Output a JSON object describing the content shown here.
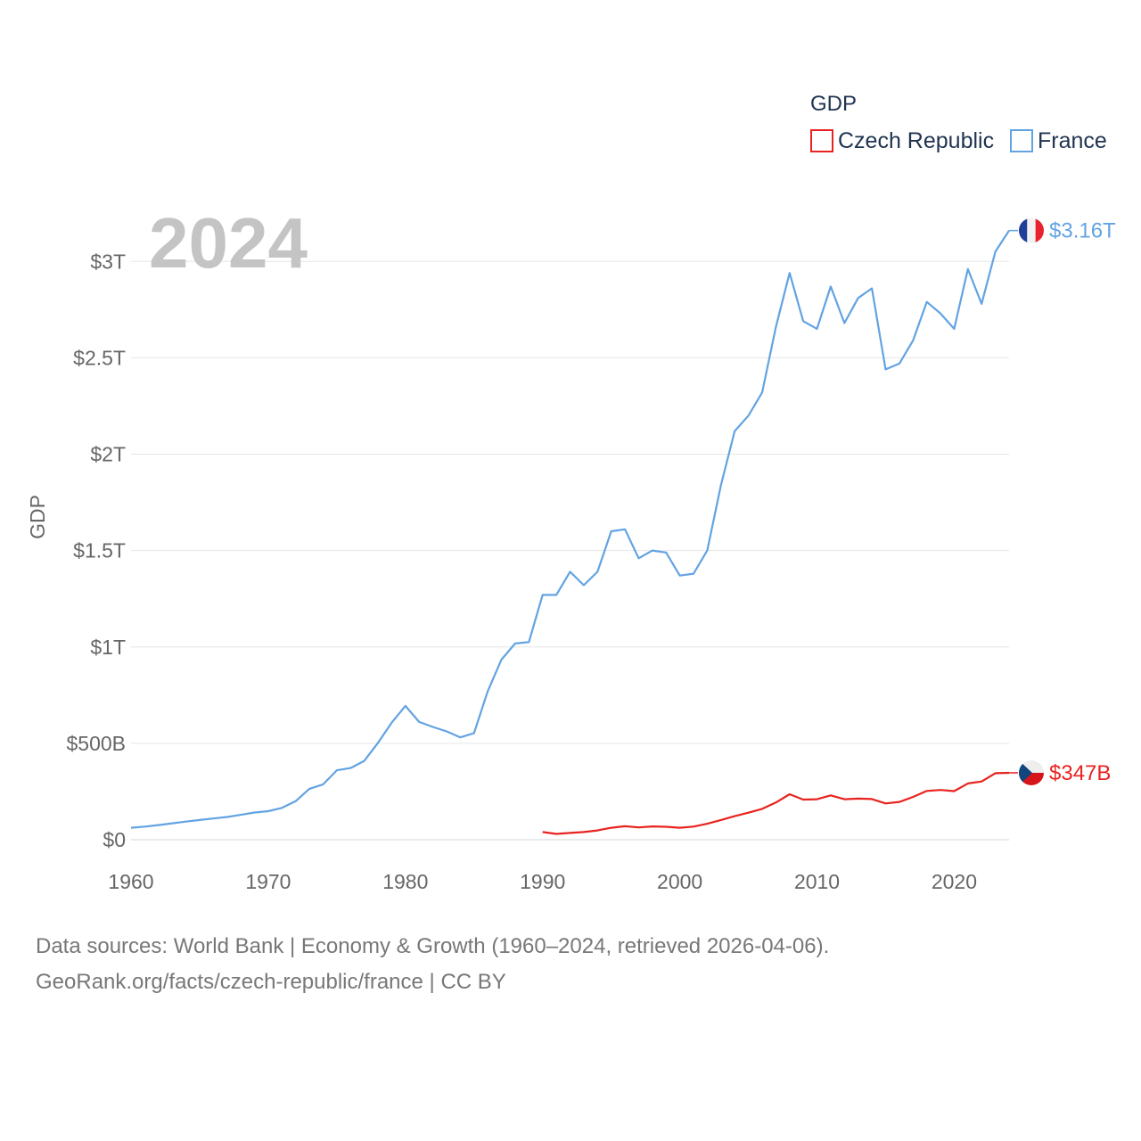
{
  "chart_data": {
    "type": "line",
    "legend_title": "GDP",
    "year_label": "2024",
    "ylabel": "GDP",
    "xlabel": "",
    "xlim": [
      1960,
      2024
    ],
    "ylim": [
      0,
      3.2
    ],
    "y_unit": "trillion USD",
    "x_ticks": [
      1960,
      1970,
      1980,
      1990,
      2000,
      2010,
      2020
    ],
    "y_ticks": [
      {
        "value": 0,
        "label": "$0"
      },
      {
        "value": 0.5,
        "label": "$500B"
      },
      {
        "value": 1,
        "label": "$1T"
      },
      {
        "value": 1.5,
        "label": "$1.5T"
      },
      {
        "value": 2,
        "label": "$2T"
      },
      {
        "value": 2.5,
        "label": "$2.5T"
      },
      {
        "value": 3,
        "label": "$3T"
      }
    ],
    "series": [
      {
        "name": "Czech Republic",
        "color": "#e8231f",
        "end_label": "$347B",
        "flag": "czech-flag-icon",
        "x": [
          1990,
          1991,
          1992,
          1993,
          1994,
          1995,
          1996,
          1997,
          1998,
          1999,
          2000,
          2001,
          2002,
          2003,
          2004,
          2005,
          2006,
          2007,
          2008,
          2009,
          2010,
          2011,
          2012,
          2013,
          2014,
          2015,
          2016,
          2017,
          2018,
          2019,
          2020,
          2021,
          2022,
          2023,
          2024
        ],
        "values": [
          0.04,
          0.03,
          0.035,
          0.04,
          0.048,
          0.062,
          0.07,
          0.064,
          0.069,
          0.067,
          0.062,
          0.068,
          0.083,
          0.102,
          0.122,
          0.14,
          0.16,
          0.193,
          0.236,
          0.208,
          0.21,
          0.23,
          0.21,
          0.213,
          0.211,
          0.188,
          0.196,
          0.222,
          0.253,
          0.258,
          0.252,
          0.292,
          0.302,
          0.345,
          0.347
        ]
      },
      {
        "name": "France",
        "color": "#62a3e2",
        "end_label": "$3.16T",
        "flag": "france-flag-icon",
        "x": [
          1960,
          1961,
          1962,
          1963,
          1964,
          1965,
          1966,
          1967,
          1968,
          1969,
          1970,
          1971,
          1972,
          1973,
          1974,
          1975,
          1976,
          1977,
          1978,
          1979,
          1980,
          1981,
          1982,
          1983,
          1984,
          1985,
          1986,
          1987,
          1988,
          1989,
          1990,
          1991,
          1992,
          1993,
          1994,
          1995,
          1996,
          1997,
          1998,
          1999,
          2000,
          2001,
          2002,
          2003,
          2004,
          2005,
          2006,
          2007,
          2008,
          2009,
          2010,
          2011,
          2012,
          2013,
          2014,
          2015,
          2016,
          2017,
          2018,
          2019,
          2020,
          2021,
          2022,
          2023,
          2024
        ],
        "values": [
          0.062,
          0.068,
          0.076,
          0.085,
          0.094,
          0.102,
          0.11,
          0.118,
          0.129,
          0.141,
          0.148,
          0.165,
          0.2,
          0.264,
          0.287,
          0.36,
          0.372,
          0.409,
          0.502,
          0.607,
          0.694,
          0.611,
          0.585,
          0.562,
          0.531,
          0.553,
          0.771,
          0.934,
          1.018,
          1.025,
          1.27,
          1.27,
          1.39,
          1.32,
          1.39,
          1.6,
          1.61,
          1.46,
          1.5,
          1.49,
          1.37,
          1.38,
          1.5,
          1.84,
          2.12,
          2.2,
          2.32,
          2.66,
          2.94,
          2.69,
          2.65,
          2.87,
          2.68,
          2.81,
          2.86,
          2.44,
          2.47,
          2.59,
          2.79,
          2.73,
          2.65,
          2.96,
          2.78,
          3.05,
          3.16
        ]
      }
    ]
  },
  "source": {
    "line1": "Data sources: World Bank | Economy & Growth (1960–2024, retrieved 2026-04-06).",
    "line2": "GeoRank.org/facts/czech-republic/france | CC BY"
  }
}
